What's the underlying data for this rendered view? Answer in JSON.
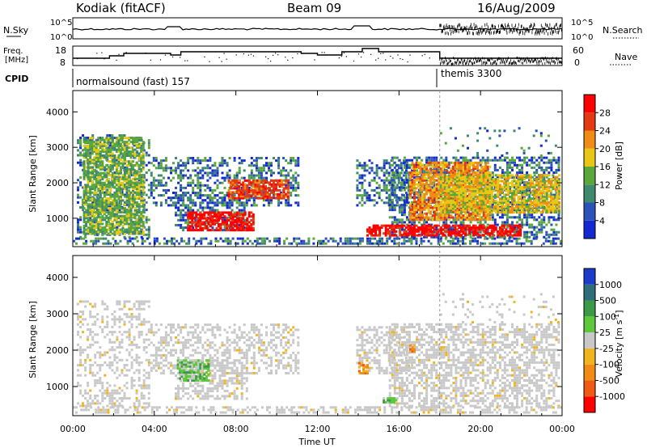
{
  "header": {
    "station": "Kodiak (fitACF)",
    "beam": "Beam 09",
    "date": "16/Aug/2009"
  },
  "top_panels": {
    "nsky_label": "N.Sky",
    "nsearch_label": "N.Search",
    "nsky_ticks_left": [
      "10^5",
      "10^0"
    ],
    "nsky_ticks_right": [
      "10^5",
      "10^0"
    ],
    "freq_label_line1": "Freq.",
    "freq_label_line2": "[MHz]",
    "freq_ticks": [
      "18",
      "8"
    ],
    "nave_label": "Nave",
    "nave_ticks": [
      "60",
      "0"
    ],
    "cpid_label": "CPID",
    "cpid_modes": [
      {
        "name": "normalsound (fast) 157",
        "start_hour": 0
      },
      {
        "name": "themis 3300",
        "start_hour": 18
      }
    ]
  },
  "chart_data": [
    {
      "type": "heatmap",
      "title": "",
      "ylabel": "Slant Range [km]",
      "xlabel": "",
      "ylim": [
        200,
        4600
      ],
      "yticks": [
        "1000",
        "2000",
        "3000",
        "4000"
      ],
      "colorbar": {
        "label": "Power [dB]",
        "ticks": [
          "4",
          "8",
          "12",
          "16",
          "20",
          "24",
          "28"
        ],
        "colors": [
          "#1428d2",
          "#2a52b8",
          "#3f8a6e",
          "#5aa83c",
          "#e8c814",
          "#f08c14",
          "#e43a14",
          "#ff0000"
        ]
      },
      "features": [
        {
          "t0": 5.6,
          "t1": 8.8,
          "r0": 700,
          "r1": 1200,
          "level": 7
        },
        {
          "t0": 7.6,
          "t1": 10.5,
          "r0": 1600,
          "r1": 2100,
          "level": 6
        },
        {
          "t0": 14.4,
          "t1": 22.0,
          "r0": 550,
          "r1": 850,
          "level": 7
        },
        {
          "t0": 16.5,
          "t1": 20.5,
          "r0": 1000,
          "r1": 2600,
          "level": 5
        },
        {
          "t0": 18.0,
          "t1": 24.0,
          "r0": 1200,
          "r1": 2300,
          "level": 4
        },
        {
          "t0": 0.5,
          "t1": 3.5,
          "r0": 600,
          "r1": 3300,
          "level": 3
        }
      ]
    },
    {
      "type": "heatmap",
      "title": "",
      "ylabel": "Slant Range [km]",
      "xlabel": "Time UT",
      "ylim": [
        200,
        4600
      ],
      "yticks": [
        "1000",
        "2000",
        "3000",
        "4000"
      ],
      "xticks": [
        "00:00",
        "04:00",
        "08:00",
        "12:00",
        "16:00",
        "20:00",
        "00:00"
      ],
      "colorbar": {
        "label": "Velocity [m s^-1]",
        "ticks": [
          "1000",
          "500",
          "100",
          "25",
          "-25",
          "-100",
          "-500",
          "-1000"
        ],
        "colors": [
          "#1a3cc8",
          "#2e6e78",
          "#3c9a46",
          "#5cc83a",
          "#c8c8c8",
          "#f0b41e",
          "#f08c14",
          "#f05a14",
          "#ff0000"
        ]
      },
      "features": [
        {
          "t0": 5.1,
          "t1": 6.6,
          "r0": 1200,
          "r1": 1800,
          "level": 3
        },
        {
          "t0": 14.0,
          "t1": 14.4,
          "r0": 1400,
          "r1": 1700,
          "level": 6
        },
        {
          "t0": 16.5,
          "t1": 16.8,
          "r0": 2000,
          "r1": 2200,
          "level": 6
        },
        {
          "t0": 15.2,
          "t1": 15.8,
          "r0": 600,
          "r1": 750,
          "level": 3
        }
      ]
    }
  ]
}
